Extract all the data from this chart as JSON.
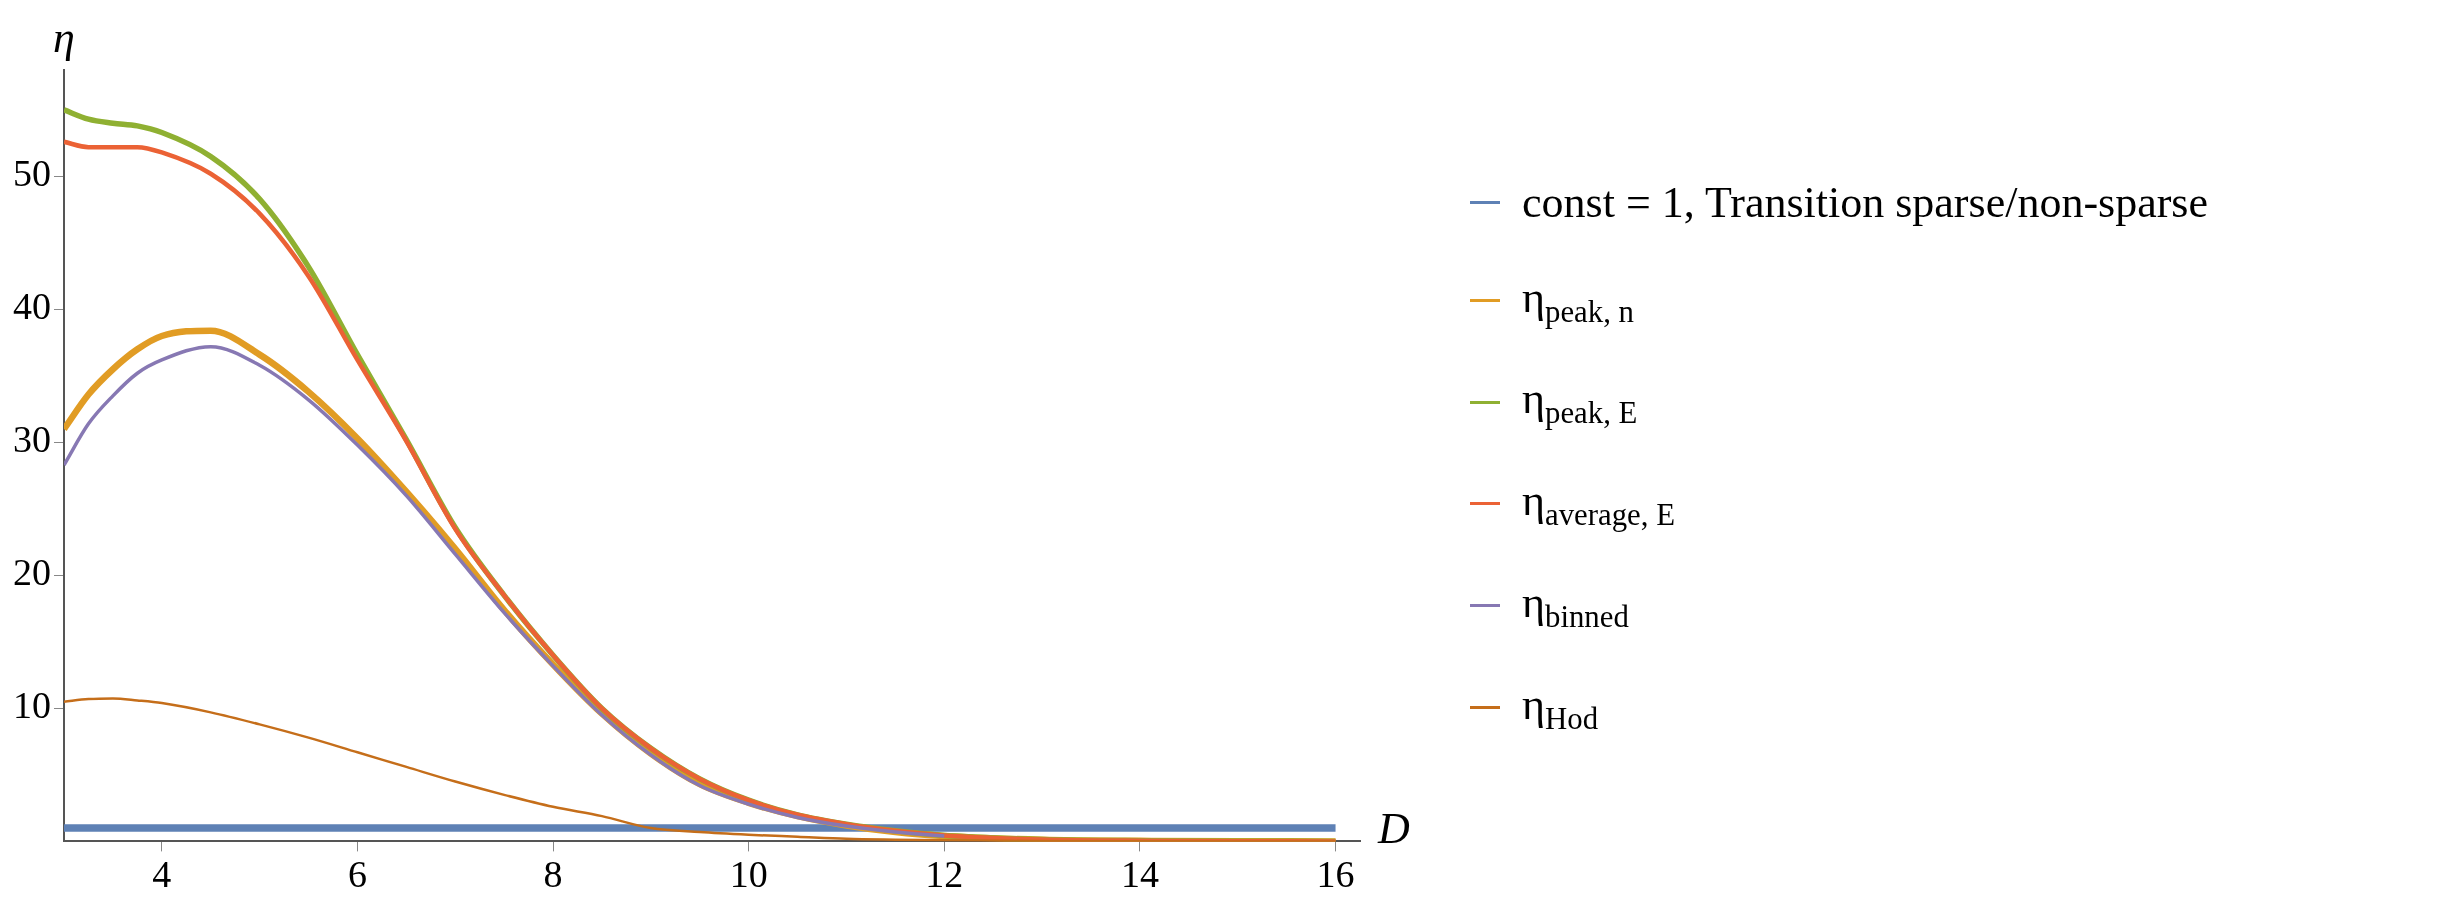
{
  "chart_data": {
    "type": "line",
    "xlabel": "D",
    "ylabel": "η",
    "x": [
      3,
      3.25,
      3.5,
      3.75,
      4,
      4.5,
      5,
      5.5,
      6,
      6.5,
      7,
      7.5,
      8,
      8.5,
      9,
      9.5,
      10,
      10.5,
      11,
      11.5,
      12,
      13,
      14,
      15,
      16
    ],
    "series": [
      {
        "name": "const = 1,  Transition sparse/non-sparse",
        "color": "#5e81b5",
        "values": [
          1,
          1,
          1,
          1,
          1,
          1,
          1,
          1,
          1,
          1,
          1,
          1,
          1,
          1,
          1,
          1,
          1,
          1,
          1,
          1,
          1,
          1,
          1,
          1,
          1
        ]
      },
      {
        "name": "η$_{peak, n}$",
        "color": "#e19c24",
        "values": [
          31.0,
          33.6,
          35.5,
          37.0,
          38.0,
          38.4,
          36.6,
          33.8,
          30.3,
          26.3,
          22.0,
          17.4,
          13.3,
          9.6,
          6.6,
          4.3,
          2.9,
          1.9,
          1.2,
          0.7,
          0.4,
          0.12,
          0.04,
          0.01,
          0
        ]
      },
      {
        "name": "η$_{peak, E}$",
        "color": "#8fb032",
        "values": [
          55.0,
          54.3,
          54.0,
          53.8,
          53.3,
          51.5,
          48.3,
          43.2,
          36.6,
          30.2,
          23.6,
          18.5,
          14.0,
          10.0,
          7.0,
          4.7,
          3.1,
          2.0,
          1.3,
          0.8,
          0.45,
          0.15,
          0.05,
          0.02,
          0
        ]
      },
      {
        "name": "η$_{average, E}$",
        "color": "#eb6235",
        "values": [
          52.6,
          52.2,
          52.2,
          52.2,
          51.8,
          50.2,
          47.2,
          42.5,
          36.2,
          30.1,
          23.5,
          18.5,
          14.0,
          10.0,
          7.0,
          4.7,
          3.1,
          2.0,
          1.3,
          0.8,
          0.45,
          0.15,
          0.05,
          0.02,
          0
        ]
      },
      {
        "name": "η$_{binned}$",
        "color": "#8778b3",
        "values": [
          28.3,
          31.4,
          33.5,
          35.2,
          36.2,
          37.2,
          35.8,
          33.2,
          29.8,
          26.0,
          21.6,
          17.2,
          13.2,
          9.5,
          6.5,
          4.2,
          2.8,
          1.8,
          1.15,
          0.7,
          0.4,
          null,
          null,
          null,
          null
        ]
      },
      {
        "name": "η$_{Hod}$",
        "color": "#c56e1a",
        "values": [
          10.5,
          10.7,
          10.75,
          10.6,
          10.4,
          9.7,
          8.8,
          7.8,
          6.7,
          5.6,
          4.5,
          3.5,
          2.6,
          1.9,
          1.0,
          0.7,
          0.5,
          0.35,
          0.2,
          0.13,
          0.08,
          0.03,
          0.01,
          0,
          0
        ]
      }
    ],
    "xlim": [
      3,
      16.25
    ],
    "ylim": [
      0,
      58
    ],
    "xticks": [
      4,
      6,
      8,
      10,
      12,
      14,
      16
    ],
    "yticks": [
      10,
      20,
      30,
      40,
      50
    ],
    "grid": false,
    "legend": "right",
    "marker": "none",
    "line_style": "solid"
  }
}
